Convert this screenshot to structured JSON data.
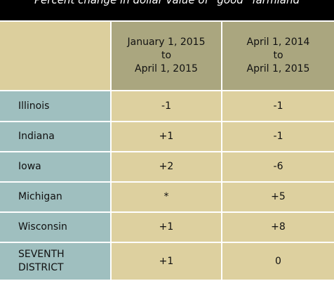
{
  "table": {
    "title": "Percent change in dollar value of “good” farmland",
    "columns": [
      [
        "January 1, 2015",
        "to",
        "April 1, 2015"
      ],
      [
        "April 1, 2014",
        "to",
        "April 1, 2015"
      ]
    ],
    "rows": [
      {
        "label": [
          "Illinois"
        ],
        "cells": [
          "-1",
          "-1"
        ]
      },
      {
        "label": [
          "Indiana"
        ],
        "cells": [
          "+1",
          "-1"
        ]
      },
      {
        "label": [
          "Iowa"
        ],
        "cells": [
          "+2",
          "-6"
        ]
      },
      {
        "label": [
          "Michigan"
        ],
        "cells": [
          "*",
          "+5"
        ]
      },
      {
        "label": [
          "Wisconsin"
        ],
        "cells": [
          "+1",
          "+8"
        ]
      },
      {
        "label": [
          "SEVENTH",
          "DISTRICT"
        ],
        "cells": [
          "+1",
          "0"
        ]
      }
    ]
  }
}
